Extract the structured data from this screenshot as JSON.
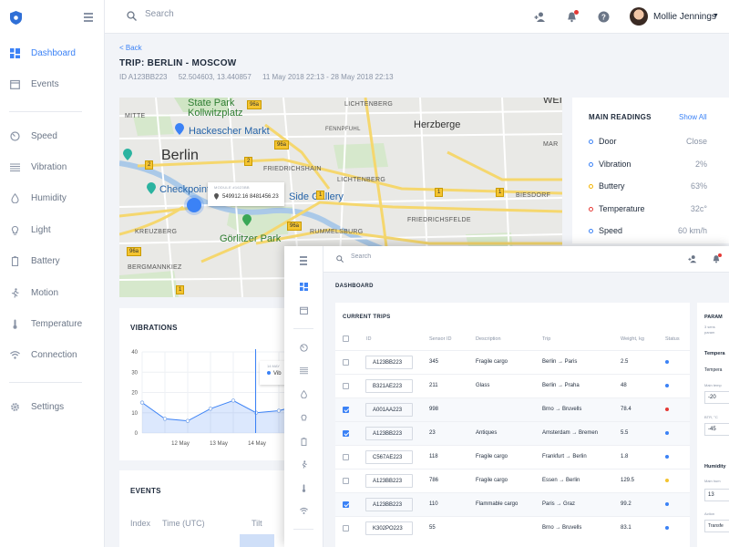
{
  "sidebar": {
    "items": [
      {
        "label": "Dashboard",
        "icon": "dashboard-icon"
      },
      {
        "label": "Events",
        "icon": "calendar-icon"
      },
      {
        "label": "Speed",
        "icon": "speed-icon"
      },
      {
        "label": "Vibration",
        "icon": "vibration-icon"
      },
      {
        "label": "Humidity",
        "icon": "humidity-icon"
      },
      {
        "label": "Light",
        "icon": "light-icon"
      },
      {
        "label": "Battery",
        "icon": "battery-icon"
      },
      {
        "label": "Motion",
        "icon": "motion-icon"
      },
      {
        "label": "Temperature",
        "icon": "temperature-icon"
      },
      {
        "label": "Connection",
        "icon": "connection-icon"
      },
      {
        "label": "Settings",
        "icon": "settings-icon"
      }
    ]
  },
  "topbar": {
    "search_placeholder": "Search",
    "user_name": "Mollie Jennings"
  },
  "trip": {
    "back_label": "< Back",
    "title": "TRIP: BERLIN - MOSCOW",
    "id": "ID A123BB223",
    "coords": "52.504603, 13.440857",
    "dates": "11 May 2018 22:13 - 28 May 2018 22:13"
  },
  "map": {
    "labels": {
      "state_park": "State Park",
      "kollwitz": "Kollwitzplatz",
      "hackescher": "Hackescher Markt",
      "berlin": "Berlin",
      "mitte": "MITTE",
      "lichtenberg_top": "LICHTENBERG",
      "fennpfuhl": "FENNPFUHL",
      "herzberge": "Herzberge",
      "friedrichshain": "FRIEDRICHSHAIN",
      "lichtenberg": "LICHTENBERG",
      "checkpoint": "Checkpoint",
      "side_gallery": "Side Gallery",
      "friedrichsfelde": "FRIEDRICHSFELDE",
      "biesdorf": "BIESDORF",
      "rummelsburg": "RUMMELSBURG",
      "kreuzberg": "KREUZBERG",
      "gorlitzer": "Görlitzer Park",
      "bergmannkiez": "BERGMANNKIEZ",
      "wei": "WEI",
      "mar": "MAR"
    },
    "road_tags": [
      "96a",
      "2",
      "96a",
      "2",
      "1",
      "1",
      "1",
      "96a",
      "1",
      "1",
      "96a"
    ],
    "popup_title": "MODULE #1623BB",
    "popup_value": "549912.16 8481456.23"
  },
  "readings": {
    "title": "MAIN READINGS",
    "show_all": "Show All",
    "items": [
      {
        "name": "Door",
        "value": "Close",
        "color": "#3b82f6"
      },
      {
        "name": "Vibration",
        "value": "2%",
        "color": "#3b82f6"
      },
      {
        "name": "Buttery",
        "value": "63%",
        "color": "#f4b400"
      },
      {
        "name": "Temperature",
        "value": "32c°",
        "color": "#e53935"
      },
      {
        "name": "Speed",
        "value": "60 km/h",
        "color": "#3b82f6"
      }
    ]
  },
  "vibrations": {
    "title": "VIBRATIONS",
    "tooltip_date": "14 MAY",
    "tooltip_series": "Vib"
  },
  "chart_data": {
    "type": "area",
    "title": "VIBRATIONS",
    "y_ticks": [
      "40",
      "30",
      "20",
      "10",
      "0"
    ],
    "x_ticks": [
      "12 May",
      "13 May",
      "14 May",
      "15 May"
    ],
    "ylim": [
      0,
      40
    ],
    "x": [
      0,
      1,
      2,
      3,
      4,
      5,
      6,
      7
    ],
    "values": [
      15,
      7,
      6,
      12,
      16,
      10,
      11,
      14
    ]
  },
  "events": {
    "title": "EVENTS",
    "columns": [
      "Index",
      "Time (UTC)",
      "Tilt"
    ]
  },
  "overlay": {
    "search_placeholder": "Search",
    "crumb": "DASHBOARD",
    "trips_title": "CURRENT TRIPS",
    "columns": [
      "ID",
      "Sensor ID",
      "Description",
      "Trip",
      "Weight, kg",
      "Status"
    ],
    "rows": [
      {
        "checked": false,
        "id": "A123BB223",
        "sensor": "345",
        "desc": "Fragile cargo",
        "trip": "Berlin → Paris",
        "weight": "2.5",
        "status": "#3b82f6"
      },
      {
        "checked": false,
        "id": "B321AE223",
        "sensor": "211",
        "desc": "Glass",
        "trip": "Berlin → Praha",
        "weight": "48",
        "status": "#3b82f6"
      },
      {
        "checked": true,
        "id": "A001AA223",
        "sensor": "998",
        "desc": "",
        "trip": "Brno → Bruvells",
        "weight": "78.4",
        "status": "#e53935"
      },
      {
        "checked": true,
        "id": "A123BB223",
        "sensor": "23",
        "desc": "Antiques",
        "trip": "Amsterdam → Bremen",
        "weight": "5.5",
        "status": "#3b82f6"
      },
      {
        "checked": false,
        "id": "C567AE223",
        "sensor": "118",
        "desc": "Fragile cargo",
        "trip": "Frankfurt → Berlin",
        "weight": "1.8",
        "status": "#3b82f6"
      },
      {
        "checked": false,
        "id": "A123BB223",
        "sensor": "786",
        "desc": "Fragile cargo",
        "trip": "Essen → Berlin",
        "weight": "129.5",
        "status": "#f4c430"
      },
      {
        "checked": true,
        "id": "A123BB223",
        "sensor": "110",
        "desc": "Flammable cargo",
        "trip": "Paris → Graz",
        "weight": "99.2",
        "status": "#3b82f6"
      },
      {
        "checked": false,
        "id": "K302PO223",
        "sensor": "55",
        "desc": "",
        "trip": "Brno → Bruvells",
        "weight": "83.1",
        "status": "#3b82f6"
      }
    ],
    "params": {
      "title": "PARAM",
      "note1": "3 sens",
      "note2": "param",
      "temp_label": "Tempera",
      "temp_sub": "Tempera",
      "main_temp": "Main temp",
      "main_temp_val": "-20",
      "btr_label": "BTR, °C",
      "btr_val": "-45",
      "humidity_label": "Humidity",
      "main_hum": "Main hum",
      "main_hum_val": "13",
      "action_label": "Action",
      "action_val": "Transfe"
    }
  }
}
